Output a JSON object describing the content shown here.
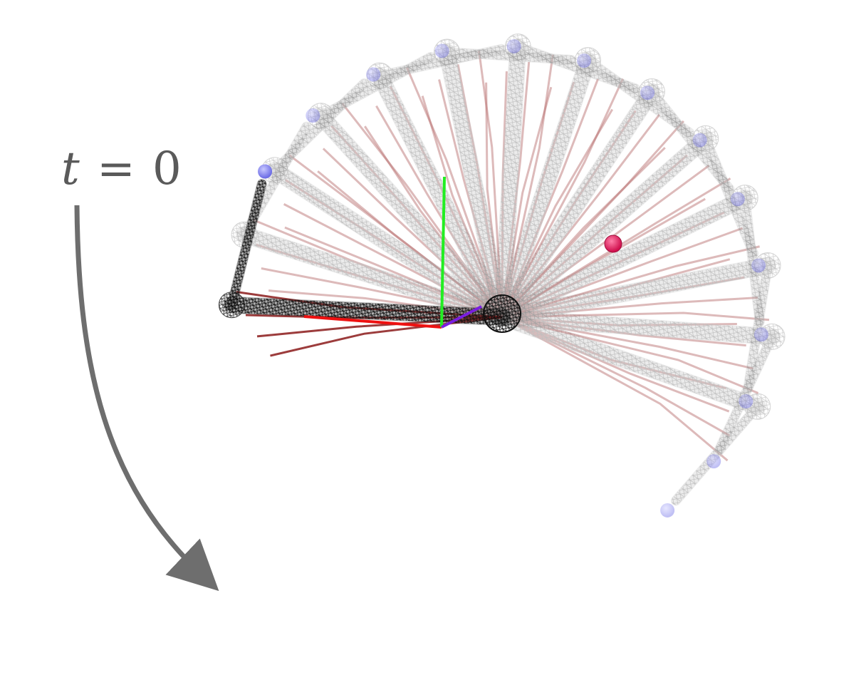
{
  "annotation": {
    "variable": "t",
    "relation": "=",
    "value": "0"
  },
  "colors": {
    "bone_active": "#1a1a1a",
    "bone_ghost": "#9a9a9a",
    "muscle_active": "#8b1a1a",
    "muscle_ghost": "#b56a6a",
    "marker_end": "#7777ee",
    "marker_target": "#e0195a",
    "axis_x": "#ee1111",
    "axis_y": "#22ee22",
    "axis_z": "#7a1fe0",
    "arrow": "#6e6e6e"
  },
  "scene": {
    "frame_count": 14,
    "sweep_start_angle_deg": -92,
    "sweep_end_angle_deg": 115,
    "active_frame_index": 0
  }
}
